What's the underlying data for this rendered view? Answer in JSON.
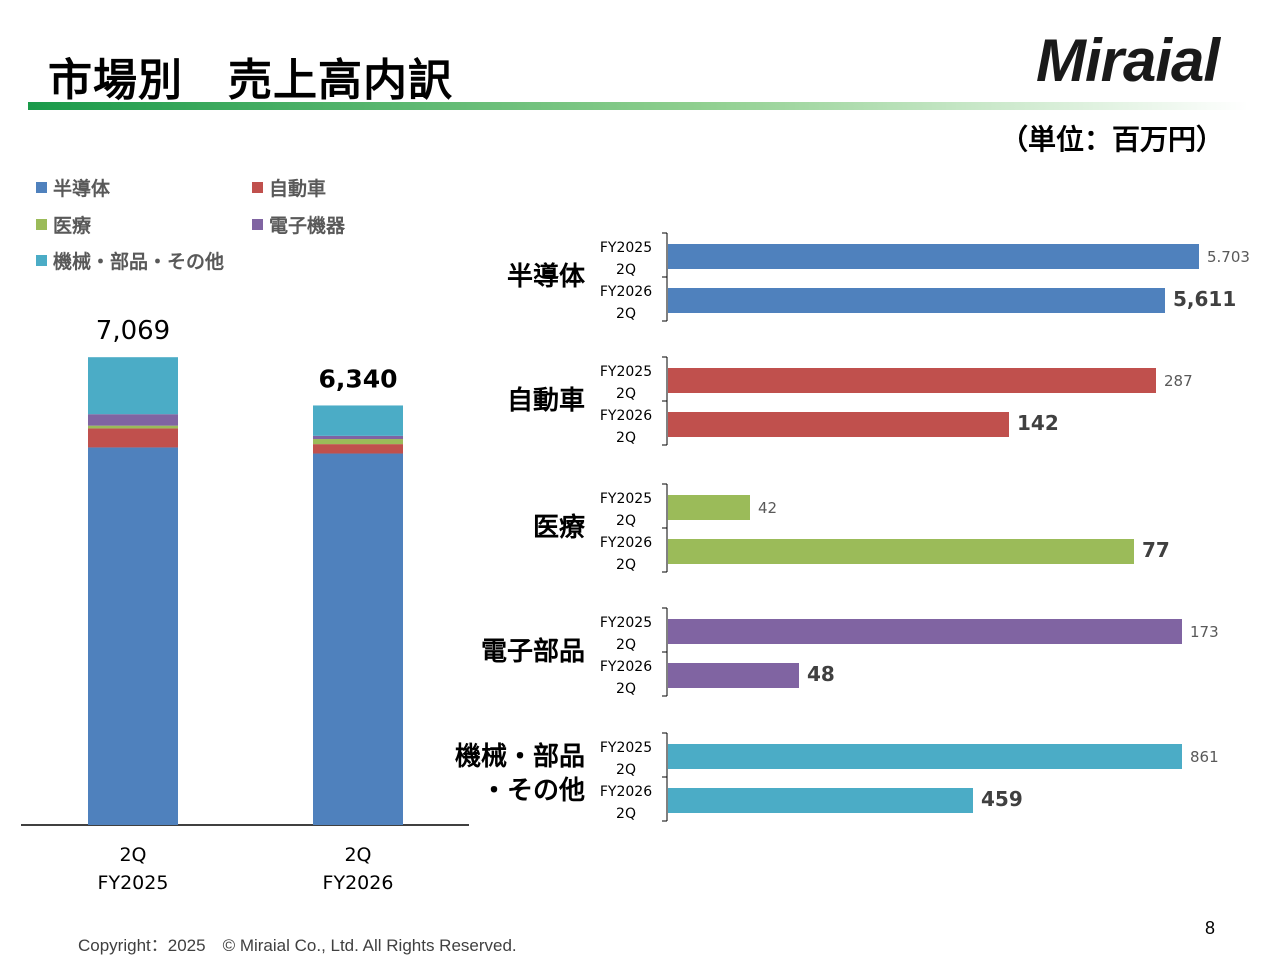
{
  "page": {
    "title": "市場別　売上高内訳",
    "logo": "Miraial",
    "unit": "（単位：百万円）",
    "footer": "Copyright：2025　© Miraial Co., Ltd. All Rights Reserved.",
    "page_number": "8"
  },
  "colors": {
    "semiconductor": "#4f81bd",
    "automotive": "#c0504d",
    "medical": "#9bbb59",
    "electronics": "#8064a2",
    "machinery": "#4bacc6"
  },
  "legend": [
    {
      "label": "半導体",
      "color": "#4f81bd"
    },
    {
      "label": "自動車",
      "color": "#c0504d"
    },
    {
      "label": "医療",
      "color": "#9bbb59"
    },
    {
      "label": "電子機器",
      "color": "#8064a2"
    },
    {
      "label": "機械・部品・その他",
      "color": "#4bacc6"
    }
  ],
  "chart_data": [
    {
      "type": "bar",
      "stacked": true,
      "categories": [
        "2Q FY2025",
        "2Q FY2026"
      ],
      "category_lines": [
        [
          "2Q",
          "FY2025"
        ],
        [
          "2Q",
          "FY2026"
        ]
      ],
      "totals": [
        "7,069",
        "6,340"
      ],
      "ylim": [
        0,
        7069
      ],
      "series": [
        {
          "name": "半導体",
          "values": [
            5703,
            5611
          ],
          "color": "#4f81bd"
        },
        {
          "name": "自動車",
          "values": [
            287,
            142
          ],
          "color": "#c0504d"
        },
        {
          "name": "医療",
          "values": [
            42,
            77
          ],
          "color": "#9bbb59"
        },
        {
          "name": "電子機器",
          "values": [
            173,
            48
          ],
          "color": "#8064a2"
        },
        {
          "name": "機械・部品・その他",
          "values": [
            861,
            459
          ],
          "color": "#4bacc6"
        }
      ]
    },
    {
      "type": "bar",
      "orientation": "horizontal",
      "period_labels": [
        [
          "FY2025",
          "2Q"
        ],
        [
          "FY2026",
          "2Q"
        ]
      ],
      "groups": [
        {
          "label_lines": [
            "半導体"
          ],
          "color": "#4f81bd",
          "values": [
            5703,
            5611
          ],
          "labels": [
            "5.703",
            "5,611"
          ]
        },
        {
          "label_lines": [
            "自動車"
          ],
          "color": "#c0504d",
          "values": [
            287,
            142
          ],
          "labels": [
            "287",
            "142"
          ]
        },
        {
          "label_lines": [
            "医療"
          ],
          "color": "#9bbb59",
          "values": [
            42,
            77
          ],
          "labels": [
            "42",
            "77"
          ]
        },
        {
          "label_lines": [
            "電子部品"
          ],
          "color": "#8064a2",
          "values": [
            173,
            48
          ],
          "labels": [
            "173",
            "48"
          ]
        },
        {
          "label_lines": [
            "機械・部品",
            "・その他"
          ],
          "color": "#4bacc6",
          "values": [
            861,
            459
          ],
          "labels": [
            "861",
            "459"
          ]
        }
      ]
    }
  ]
}
